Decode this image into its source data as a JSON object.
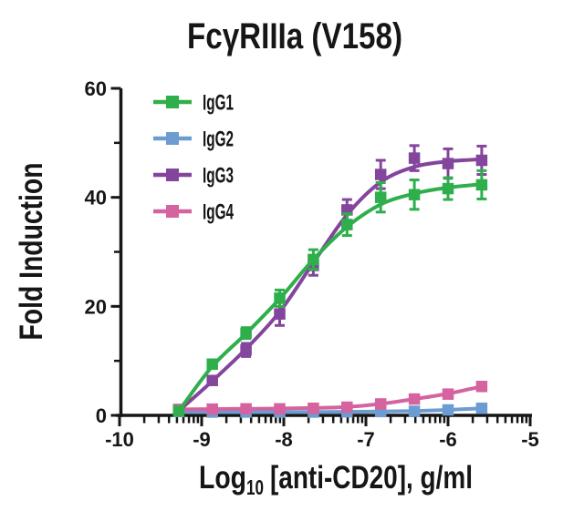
{
  "title": "FcγRIIIa (V158)",
  "chart_data": {
    "type": "line",
    "title": "FcγRIIIa (V158)",
    "ylabel": "Fold Induction",
    "xlabel": "Log10 [anti-CD20], g/ml",
    "xlabel_pre": "Log",
    "xlabel_sub": "10",
    "xlabel_post": "[anti-CD20], g/ml",
    "x_unit": "g/ml",
    "x_scale": "log10",
    "xlim": [
      -10,
      -5
    ],
    "ylim": [
      0,
      60
    ],
    "x_ticks": [
      -10,
      -9,
      -8,
      -7,
      -6,
      -5
    ],
    "x_tick_labels": [
      "-10",
      "-9",
      "-8",
      "-7",
      "-6",
      "-5"
    ],
    "y_ticks": [
      0,
      20,
      40,
      60
    ],
    "y_tick_labels": [
      "0",
      "20",
      "40",
      "60"
    ],
    "y_minor_ticks": [
      10,
      30,
      50
    ],
    "grid": false,
    "legend_position": "top-left",
    "x": [
      -9.28,
      -8.87,
      -8.46,
      -8.05,
      -7.64,
      -7.23,
      -6.82,
      -6.41,
      -6.0,
      -5.59
    ],
    "series": [
      {
        "name": "IgG1",
        "color": "#2FAF4B",
        "values": [
          0.8,
          9.4,
          15.1,
          21.5,
          28.6,
          35.0,
          40.0,
          40.5,
          41.6,
          42.3
        ],
        "errors": [
          0.4,
          0.7,
          1.0,
          1.5,
          1.8,
          2.0,
          2.7,
          2.7,
          2.0,
          2.6
        ],
        "curve": [
          0.8,
          9.0,
          15.0,
          21.4,
          28.6,
          34.6,
          38.7,
          40.7,
          41.8,
          42.4
        ]
      },
      {
        "name": "IgG2",
        "color": "#6C9CD2",
        "values": [
          0.7,
          0.6,
          0.6,
          0.6,
          0.6,
          0.65,
          0.7,
          0.75,
          1.0,
          1.3
        ],
        "errors": [
          0.15,
          0.15,
          0.15,
          0.15,
          0.15,
          0.15,
          0.2,
          0.2,
          0.25,
          0.35
        ],
        "curve": [
          0.65,
          0.62,
          0.6,
          0.6,
          0.62,
          0.65,
          0.7,
          0.8,
          1.0,
          1.3
        ]
      },
      {
        "name": "IgG3",
        "color": "#84459C",
        "values": [
          0.8,
          6.4,
          12.0,
          18.6,
          27.5,
          37.7,
          44.2,
          47.2,
          46.2,
          46.8
        ],
        "errors": [
          0.4,
          0.7,
          1.2,
          2.1,
          1.8,
          1.9,
          2.6,
          2.3,
          2.7,
          2.6
        ],
        "curve": [
          0.8,
          6.3,
          12.2,
          19.0,
          28.0,
          36.8,
          42.8,
          45.6,
          46.6,
          47.0
        ]
      },
      {
        "name": "IgG4",
        "color": "#D4639F",
        "values": [
          1.1,
          1.15,
          1.2,
          1.2,
          1.3,
          1.5,
          2.1,
          3.0,
          3.9,
          5.3
        ],
        "errors": [
          0.15,
          0.15,
          0.15,
          0.15,
          0.2,
          0.2,
          0.3,
          0.4,
          0.5,
          0.6
        ],
        "curve": [
          1.1,
          1.15,
          1.2,
          1.25,
          1.35,
          1.55,
          2.1,
          3.0,
          4.0,
          5.3
        ]
      }
    ]
  }
}
